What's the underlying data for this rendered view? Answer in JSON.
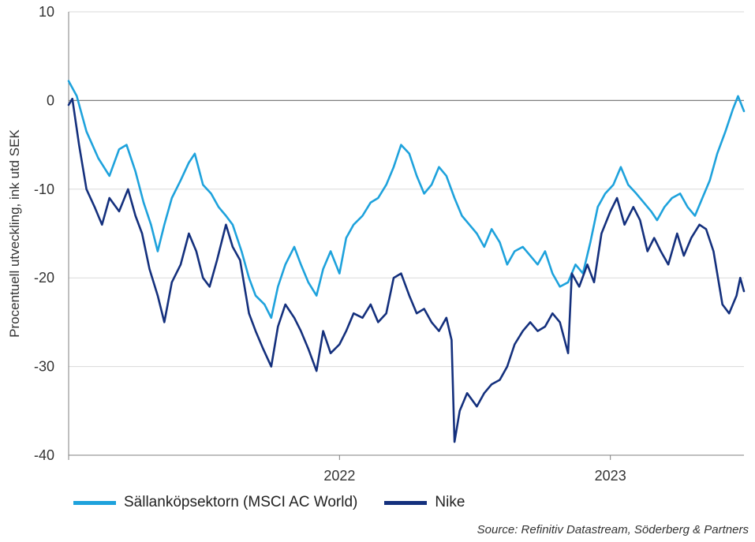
{
  "chart_data": {
    "type": "line",
    "ylabel": "Procentuell utveckling, ink utd SEK",
    "ylim": [
      -40,
      10
    ],
    "yticks": [
      10,
      0,
      -10,
      -20,
      -30,
      -40
    ],
    "xlim": [
      "2021-01-01",
      "2023-06-30"
    ],
    "xtick_labels": [
      {
        "label": "2022",
        "x": "2022-01-01"
      },
      {
        "label": "2023",
        "x": "2023-01-01"
      }
    ],
    "x_boundaries": [
      "2021-01-01",
      "2022-01-01",
      "2023-01-01"
    ],
    "grid": true,
    "legend_position": "bottom-left",
    "source": "Source: Refinitiv Datastream, Söderberg & Partners",
    "series": [
      {
        "name": "Sällanköpsektorn (MSCI AC World)",
        "color": "#1ea2dc",
        "points": [
          [
            "2021-01-01",
            2.2
          ],
          [
            "2021-01-12",
            0.5
          ],
          [
            "2021-01-25",
            -3.5
          ],
          [
            "2021-02-10",
            -6.5
          ],
          [
            "2021-02-25",
            -8.5
          ],
          [
            "2021-03-10",
            -5.5
          ],
          [
            "2021-03-20",
            -5.0
          ],
          [
            "2021-04-01",
            -8.0
          ],
          [
            "2021-04-12",
            -11.5
          ],
          [
            "2021-04-22",
            -14.0
          ],
          [
            "2021-05-01",
            -17.0
          ],
          [
            "2021-05-10",
            -14.0
          ],
          [
            "2021-05-20",
            -11.0
          ],
          [
            "2021-06-01",
            -9.0
          ],
          [
            "2021-06-12",
            -7.0
          ],
          [
            "2021-06-20",
            -6.0
          ],
          [
            "2021-07-01",
            -9.5
          ],
          [
            "2021-07-12",
            -10.5
          ],
          [
            "2021-07-22",
            -12.0
          ],
          [
            "2021-08-01",
            -13.0
          ],
          [
            "2021-08-10",
            -14.0
          ],
          [
            "2021-08-22",
            -17.0
          ],
          [
            "2021-09-01",
            -20.0
          ],
          [
            "2021-09-10",
            -22.0
          ],
          [
            "2021-09-22",
            -23.0
          ],
          [
            "2021-10-01",
            -24.5
          ],
          [
            "2021-10-10",
            -21.0
          ],
          [
            "2021-10-20",
            -18.5
          ],
          [
            "2021-11-01",
            -16.5
          ],
          [
            "2021-11-10",
            -18.5
          ],
          [
            "2021-11-20",
            -20.5
          ],
          [
            "2021-12-01",
            -22.0
          ],
          [
            "2021-12-10",
            -19.0
          ],
          [
            "2021-12-20",
            -17.0
          ],
          [
            "2022-01-01",
            -19.5
          ],
          [
            "2022-01-10",
            -15.5
          ],
          [
            "2022-01-20",
            -14.0
          ],
          [
            "2022-02-01",
            -13.0
          ],
          [
            "2022-02-12",
            -11.5
          ],
          [
            "2022-02-22",
            -11.0
          ],
          [
            "2022-03-05",
            -9.5
          ],
          [
            "2022-03-15",
            -7.5
          ],
          [
            "2022-03-25",
            -5.0
          ],
          [
            "2022-04-05",
            -6.0
          ],
          [
            "2022-04-15",
            -8.5
          ],
          [
            "2022-04-25",
            -10.5
          ],
          [
            "2022-05-05",
            -9.5
          ],
          [
            "2022-05-15",
            -7.5
          ],
          [
            "2022-05-25",
            -8.5
          ],
          [
            "2022-06-05",
            -11.0
          ],
          [
            "2022-06-15",
            -13.0
          ],
          [
            "2022-06-25",
            -14.0
          ],
          [
            "2022-07-05",
            -15.0
          ],
          [
            "2022-07-15",
            -16.5
          ],
          [
            "2022-07-25",
            -14.5
          ],
          [
            "2022-08-05",
            -16.0
          ],
          [
            "2022-08-15",
            -18.5
          ],
          [
            "2022-08-25",
            -17.0
          ],
          [
            "2022-09-05",
            -16.5
          ],
          [
            "2022-09-15",
            -17.5
          ],
          [
            "2022-09-25",
            -18.5
          ],
          [
            "2022-10-05",
            -17.0
          ],
          [
            "2022-10-15",
            -19.5
          ],
          [
            "2022-10-25",
            -21.0
          ],
          [
            "2022-11-05",
            -20.5
          ],
          [
            "2022-11-15",
            -18.5
          ],
          [
            "2022-11-25",
            -19.5
          ],
          [
            "2022-12-05",
            -16.0
          ],
          [
            "2022-12-15",
            -12.0
          ],
          [
            "2022-12-25",
            -10.5
          ],
          [
            "2023-01-05",
            -9.5
          ],
          [
            "2023-01-15",
            -7.5
          ],
          [
            "2023-01-25",
            -9.5
          ],
          [
            "2023-02-05",
            -10.5
          ],
          [
            "2023-02-15",
            -11.5
          ],
          [
            "2023-02-25",
            -12.5
          ],
          [
            "2023-03-05",
            -13.5
          ],
          [
            "2023-03-15",
            -12.0
          ],
          [
            "2023-03-25",
            -11.0
          ],
          [
            "2023-04-05",
            -10.5
          ],
          [
            "2023-04-15",
            -12.0
          ],
          [
            "2023-04-25",
            -13.0
          ],
          [
            "2023-05-05",
            -11.0
          ],
          [
            "2023-05-15",
            -9.0
          ],
          [
            "2023-05-25",
            -6.0
          ],
          [
            "2023-06-05",
            -3.5
          ],
          [
            "2023-06-15",
            -1.0
          ],
          [
            "2023-06-22",
            0.5
          ],
          [
            "2023-06-30",
            -1.2
          ]
        ]
      },
      {
        "name": "Nike",
        "color": "#14307d",
        "points": [
          [
            "2021-01-01",
            -0.5
          ],
          [
            "2021-01-06",
            0.2
          ],
          [
            "2021-01-15",
            -5.0
          ],
          [
            "2021-01-25",
            -10.0
          ],
          [
            "2021-02-05",
            -12.0
          ],
          [
            "2021-02-15",
            -14.0
          ],
          [
            "2021-02-25",
            -11.0
          ],
          [
            "2021-03-10",
            -12.5
          ],
          [
            "2021-03-22",
            -10.0
          ],
          [
            "2021-04-01",
            -13.0
          ],
          [
            "2021-04-10",
            -15.0
          ],
          [
            "2021-04-20",
            -19.0
          ],
          [
            "2021-05-01",
            -22.0
          ],
          [
            "2021-05-10",
            -25.0
          ],
          [
            "2021-05-20",
            -20.5
          ],
          [
            "2021-06-01",
            -18.5
          ],
          [
            "2021-06-12",
            -15.0
          ],
          [
            "2021-06-22",
            -17.0
          ],
          [
            "2021-07-01",
            -20.0
          ],
          [
            "2021-07-10",
            -21.0
          ],
          [
            "2021-07-20",
            -18.0
          ],
          [
            "2021-08-01",
            -14.0
          ],
          [
            "2021-08-10",
            -16.5
          ],
          [
            "2021-08-20",
            -18.0
          ],
          [
            "2021-09-01",
            -24.0
          ],
          [
            "2021-09-10",
            -26.0
          ],
          [
            "2021-09-20",
            -28.0
          ],
          [
            "2021-10-01",
            -30.0
          ],
          [
            "2021-10-10",
            -25.5
          ],
          [
            "2021-10-20",
            -23.0
          ],
          [
            "2021-11-01",
            -24.5
          ],
          [
            "2021-11-10",
            -26.0
          ],
          [
            "2021-11-20",
            -28.0
          ],
          [
            "2021-12-01",
            -30.5
          ],
          [
            "2021-12-10",
            -26.0
          ],
          [
            "2021-12-20",
            -28.5
          ],
          [
            "2022-01-01",
            -27.5
          ],
          [
            "2022-01-10",
            -26.0
          ],
          [
            "2022-01-20",
            -24.0
          ],
          [
            "2022-02-01",
            -24.5
          ],
          [
            "2022-02-12",
            -23.0
          ],
          [
            "2022-02-22",
            -25.0
          ],
          [
            "2022-03-05",
            -24.0
          ],
          [
            "2022-03-15",
            -20.0
          ],
          [
            "2022-03-25",
            -19.5
          ],
          [
            "2022-04-05",
            -22.0
          ],
          [
            "2022-04-15",
            -24.0
          ],
          [
            "2022-04-25",
            -23.5
          ],
          [
            "2022-05-05",
            -25.0
          ],
          [
            "2022-05-15",
            -26.0
          ],
          [
            "2022-05-25",
            -24.5
          ],
          [
            "2022-06-01",
            -27.0
          ],
          [
            "2022-06-05",
            -38.5
          ],
          [
            "2022-06-12",
            -35.0
          ],
          [
            "2022-06-22",
            -33.0
          ],
          [
            "2022-07-05",
            -34.5
          ],
          [
            "2022-07-15",
            -33.0
          ],
          [
            "2022-07-25",
            -32.0
          ],
          [
            "2022-08-05",
            -31.5
          ],
          [
            "2022-08-15",
            -30.0
          ],
          [
            "2022-08-25",
            -27.5
          ],
          [
            "2022-09-05",
            -26.0
          ],
          [
            "2022-09-15",
            -25.0
          ],
          [
            "2022-09-25",
            -26.0
          ],
          [
            "2022-10-05",
            -25.5
          ],
          [
            "2022-10-15",
            -24.0
          ],
          [
            "2022-10-25",
            -25.0
          ],
          [
            "2022-11-05",
            -28.5
          ],
          [
            "2022-11-10",
            -19.5
          ],
          [
            "2022-11-20",
            -21.0
          ],
          [
            "2022-12-01",
            -18.5
          ],
          [
            "2022-12-10",
            -20.5
          ],
          [
            "2022-12-20",
            -15.0
          ],
          [
            "2023-01-01",
            -12.5
          ],
          [
            "2023-01-10",
            -11.0
          ],
          [
            "2023-01-20",
            -14.0
          ],
          [
            "2023-02-01",
            -12.0
          ],
          [
            "2023-02-10",
            -13.5
          ],
          [
            "2023-02-20",
            -17.0
          ],
          [
            "2023-03-01",
            -15.5
          ],
          [
            "2023-03-10",
            -17.0
          ],
          [
            "2023-03-20",
            -18.5
          ],
          [
            "2023-04-01",
            -15.0
          ],
          [
            "2023-04-10",
            -17.5
          ],
          [
            "2023-04-20",
            -15.5
          ],
          [
            "2023-05-01",
            -14.0
          ],
          [
            "2023-05-10",
            -14.5
          ],
          [
            "2023-05-20",
            -17.0
          ],
          [
            "2023-06-01",
            -23.0
          ],
          [
            "2023-06-10",
            -24.0
          ],
          [
            "2023-06-20",
            -22.0
          ],
          [
            "2023-06-25",
            -20.0
          ],
          [
            "2023-06-30",
            -21.5
          ]
        ]
      }
    ]
  }
}
